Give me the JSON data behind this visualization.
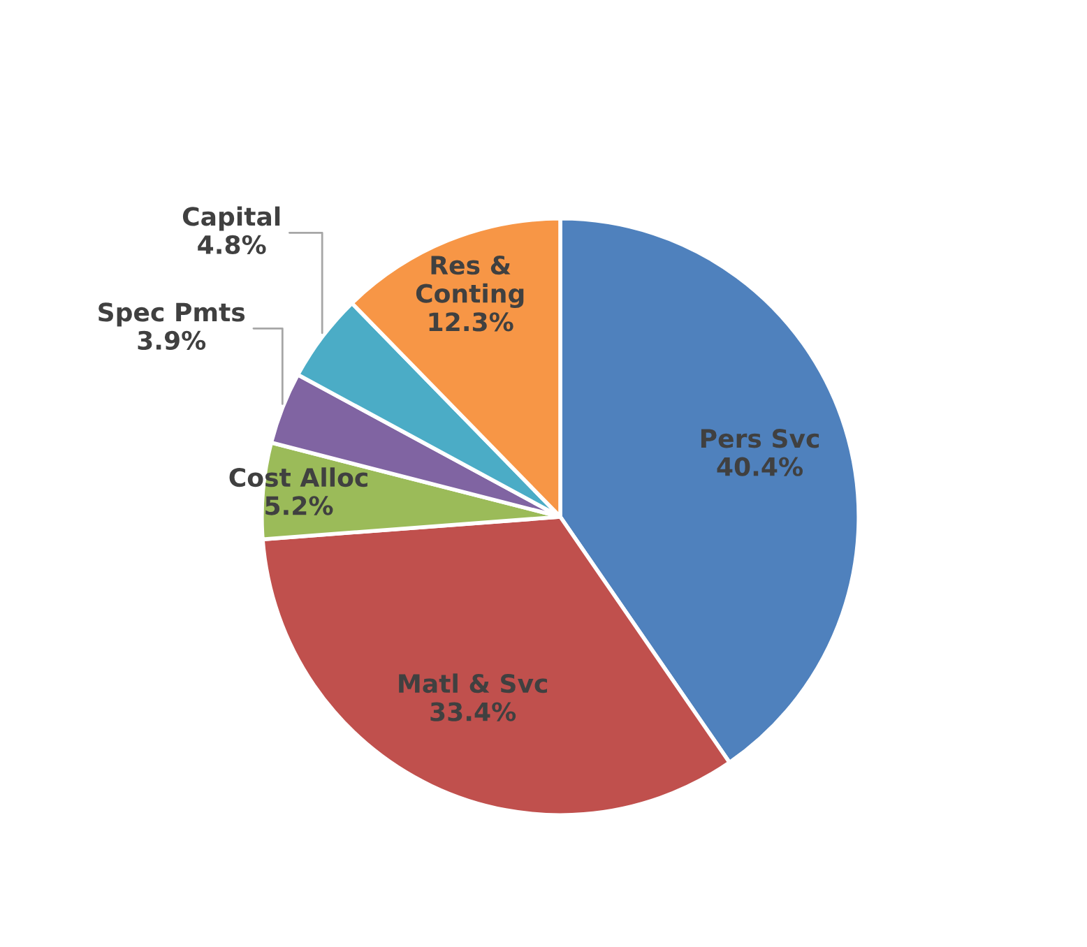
{
  "chart_data": {
    "type": "pie",
    "categories": [
      "Pers Svc",
      "Matl & Svc",
      "Cost Alloc",
      "Spec Pmts",
      "Capital",
      "Res &\nConting"
    ],
    "values": [
      40.4,
      33.4,
      5.2,
      3.9,
      4.8,
      12.3
    ],
    "value_labels": [
      "40.4%",
      "33.4%",
      "5.2%",
      "3.9%",
      "4.8%",
      "12.3%"
    ],
    "colors": [
      "#4f81bd",
      "#c0504d",
      "#9bbb59",
      "#8064a2",
      "#4bacc6",
      "#f79646"
    ],
    "legend": false
  }
}
